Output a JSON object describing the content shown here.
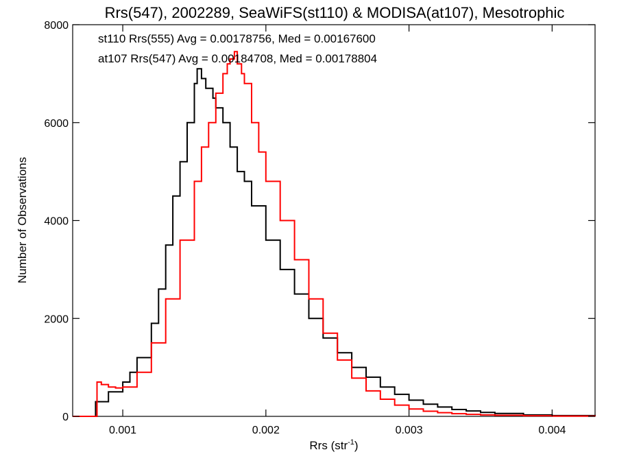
{
  "chart_data": {
    "type": "line",
    "title": "Rrs(547), 2002289, SeaWiFS(st110) & MODISA(at107), Mesotrophic",
    "xlabel_base": "Rrs (str",
    "xlabel_sup": "-1",
    "xlabel_end": ")",
    "ylabel": "Number of Observations",
    "xlim": [
      0.00065,
      0.0043
    ],
    "ylim": [
      0,
      8000
    ],
    "x_ticks": [
      {
        "value": 0.001,
        "label": "0.001"
      },
      {
        "value": 0.002,
        "label": "0.002"
      },
      {
        "value": 0.003,
        "label": "0.003"
      },
      {
        "value": 0.004,
        "label": "0.004"
      }
    ],
    "y_ticks": [
      {
        "value": 0,
        "label": "0"
      },
      {
        "value": 2000,
        "label": "2000"
      },
      {
        "value": 4000,
        "label": "4000"
      },
      {
        "value": 6000,
        "label": "6000"
      },
      {
        "value": 8000,
        "label": "8000"
      }
    ],
    "grid": false,
    "legend_placement": "top-left",
    "series": [
      {
        "legend": "st110 Rrs(555) Avg = 0.00178756, Med = 0.00167600",
        "color": "#000000",
        "step": true,
        "x": [
          0.00065,
          0.0008,
          0.00081,
          0.0009,
          0.001,
          0.00105,
          0.0011,
          0.0012,
          0.00125,
          0.0013,
          0.00135,
          0.0014,
          0.00145,
          0.0015,
          0.00152,
          0.00155,
          0.00158,
          0.0016,
          0.00163,
          0.00165,
          0.0017,
          0.00175,
          0.0018,
          0.00185,
          0.0019,
          0.002,
          0.0021,
          0.0022,
          0.0023,
          0.0024,
          0.0025,
          0.0026,
          0.0027,
          0.0028,
          0.0029,
          0.003,
          0.0031,
          0.0032,
          0.0033,
          0.0034,
          0.0035,
          0.0036,
          0.0038,
          0.004,
          0.0043
        ],
        "y": [
          0,
          0,
          300,
          500,
          700,
          900,
          1200,
          1900,
          2600,
          3500,
          4500,
          5200,
          6000,
          6800,
          7100,
          6900,
          6700,
          6700,
          6500,
          6300,
          6000,
          5500,
          5000,
          4800,
          4300,
          3600,
          3000,
          2500,
          2000,
          1600,
          1300,
          1000,
          800,
          600,
          450,
          330,
          250,
          190,
          140,
          110,
          80,
          60,
          30,
          15,
          5
        ]
      },
      {
        "legend": "at107 Rrs(547) Avg = 0.00184708, Med = 0.00178804",
        "color": "#ff0000",
        "step": true,
        "x": [
          0.00065,
          0.0008,
          0.00082,
          0.00085,
          0.0009,
          0.00095,
          0.001,
          0.0011,
          0.0012,
          0.0013,
          0.0014,
          0.0015,
          0.00155,
          0.0016,
          0.00165,
          0.0017,
          0.00173,
          0.00175,
          0.00178,
          0.0018,
          0.00183,
          0.00185,
          0.0019,
          0.00195,
          0.002,
          0.0021,
          0.0022,
          0.0023,
          0.0024,
          0.0025,
          0.0026,
          0.0027,
          0.0028,
          0.0029,
          0.003,
          0.0031,
          0.0032,
          0.0033,
          0.0034,
          0.0035,
          0.0036,
          0.0038,
          0.004,
          0.0043
        ],
        "y": [
          0,
          0,
          700,
          650,
          600,
          580,
          600,
          900,
          1500,
          2400,
          3600,
          4800,
          5500,
          6000,
          6600,
          7000,
          7200,
          7300,
          7450,
          7200,
          7000,
          6800,
          6000,
          5400,
          4800,
          4000,
          3200,
          2400,
          1700,
          1150,
          780,
          520,
          350,
          230,
          150,
          105,
          75,
          55,
          40,
          30,
          22,
          12,
          6,
          2
        ]
      }
    ]
  }
}
